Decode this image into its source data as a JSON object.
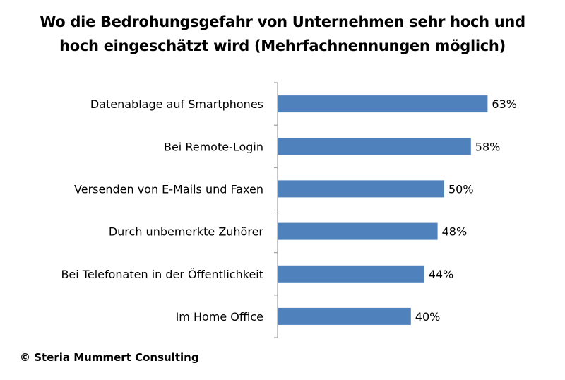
{
  "chart_data": {
    "type": "bar",
    "orientation": "horizontal",
    "title": [
      "Wo die Bedrohungsgefahr von Unternehmen sehr hoch und",
      "hoch eingeschätzt wird (Mehrfachnennungen möglich)"
    ],
    "categories": [
      "Datenablage auf Smartphones",
      "Bei Remote-Login",
      "Versenden von E-Mails und Faxen",
      "Durch unbemerkte Zuhörer",
      "Bei Telefonaten in der Öffentlichkeit",
      "Im Home Office"
    ],
    "values": [
      63,
      58,
      50,
      48,
      44,
      40
    ],
    "value_labels": [
      "63%",
      "58%",
      "50%",
      "48%",
      "44%",
      "40%"
    ],
    "unit": "%",
    "bar_color": "#4F81BD",
    "axis_color": "#8C8C8C",
    "grid": false,
    "legend": "none"
  },
  "footer": {
    "credit": "© Steria Mummert Consulting"
  }
}
